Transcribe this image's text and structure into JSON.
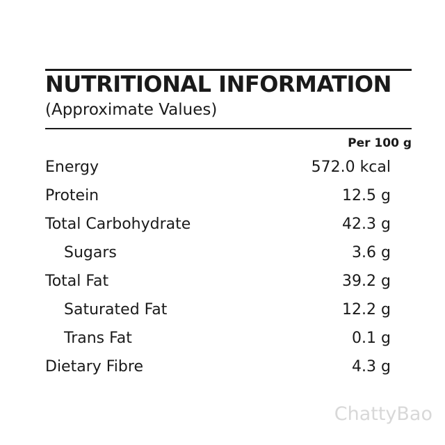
{
  "header": {
    "title": "NUTRITIONAL INFORMATION",
    "subtitle": "(Approximate Values)"
  },
  "table": {
    "column_header": "Per 100 g",
    "rows": [
      {
        "label": "Energy",
        "value": "572.0 kcal"
      },
      {
        "label": "Protein",
        "value": "12.5 g"
      },
      {
        "label": "Total Carbohydrate",
        "value": "42.3 g",
        "sub_rows": [
          {
            "label": "Sugars",
            "value": "3.6 g"
          }
        ]
      },
      {
        "label": "Total Fat",
        "value": "39.2 g",
        "sub_rows": [
          {
            "label": "Saturated Fat",
            "value": "12.2 g"
          },
          {
            "label": "Trans Fat",
            "value": "0.1 g"
          }
        ]
      },
      {
        "label": "Dietary Fibre",
        "value": "4.3 g"
      }
    ]
  },
  "watermark": "ChattyBao"
}
